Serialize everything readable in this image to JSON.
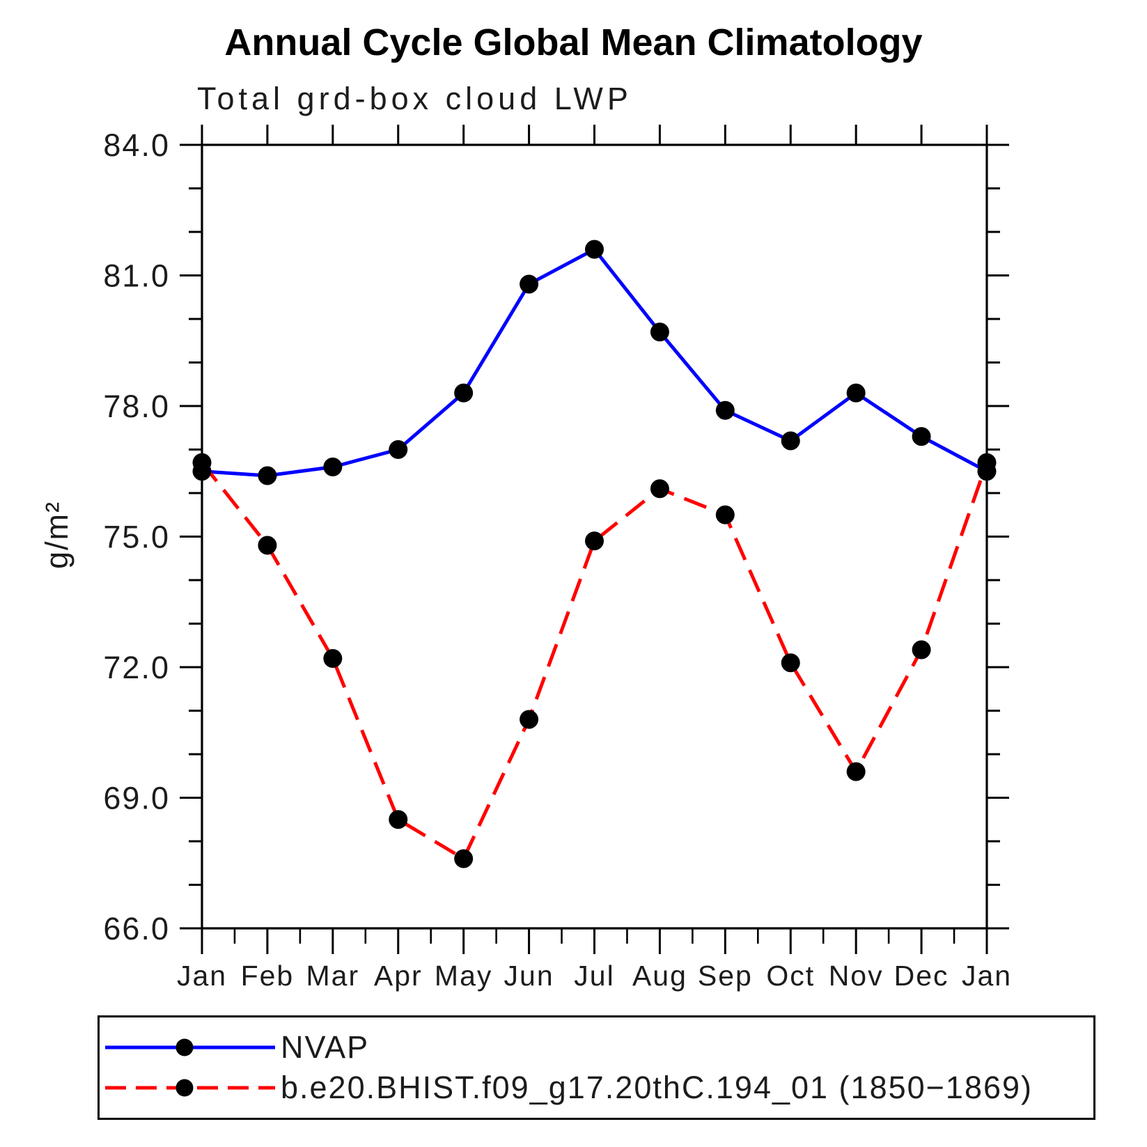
{
  "page": {
    "background": "#ffffff"
  },
  "chart_data": {
    "type": "line",
    "title": "Annual Cycle Global Mean Climatology",
    "subtitle": "Total grd-box cloud LWP",
    "ylabel": "g/m²",
    "xlabel": "",
    "ylim": [
      66.0,
      84.0
    ],
    "ytick_step": 3,
    "yticks": [
      66,
      69,
      72,
      75,
      78,
      81,
      84
    ],
    "ytick_labels": [
      "66.0",
      "69.0",
      "72.0",
      "75.0",
      "78.0",
      "81.0",
      "84.0"
    ],
    "minor_ytick_interval": 1,
    "categories": [
      "Jan",
      "Feb",
      "Mar",
      "Apr",
      "May",
      "Jun",
      "Jul",
      "Aug",
      "Sep",
      "Oct",
      "Nov",
      "Dec",
      "Jan"
    ],
    "grid": false,
    "legend_position": "bottom-left-box",
    "marker": {
      "shape": "circle",
      "color": "#000000"
    },
    "axis_color": "#000000",
    "series": [
      {
        "name": "NVAP",
        "color": "#0000ff",
        "line_style": "solid",
        "values": [
          76.5,
          76.4,
          76.6,
          77.0,
          78.3,
          80.8,
          81.6,
          79.7,
          77.9,
          77.2,
          78.3,
          77.3,
          76.5
        ]
      },
      {
        "name": "b.e20.BHIST.f09_g17.20thC.194_01 (1850−1869)",
        "color": "#ff0000",
        "line_style": "dashed",
        "values": [
          76.7,
          74.8,
          72.2,
          68.5,
          67.6,
          70.8,
          74.9,
          76.1,
          75.5,
          72.1,
          69.6,
          72.4,
          76.7
        ]
      }
    ]
  }
}
